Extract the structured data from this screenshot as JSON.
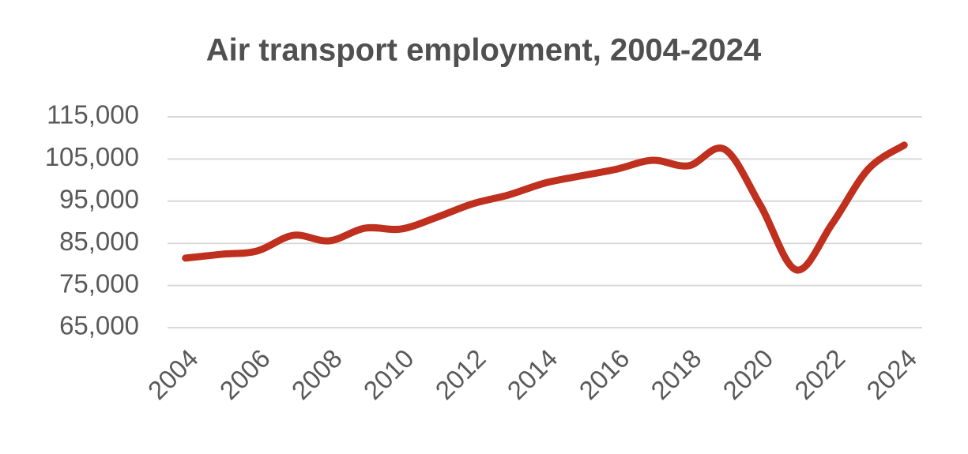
{
  "chart_data": {
    "type": "line",
    "title": "Air transport employment, 2004-2024",
    "x": [
      2004,
      2005,
      2006,
      2007,
      2008,
      2009,
      2010,
      2011,
      2012,
      2013,
      2014,
      2015,
      2016,
      2017,
      2018,
      2019,
      2020,
      2021,
      2022,
      2023,
      2024
    ],
    "series": [
      {
        "color": "#c0301f",
        "values": [
          81500,
          82400,
          83200,
          86900,
          85600,
          88600,
          88400,
          91200,
          94400,
          96500,
          99300,
          101000,
          102600,
          104700,
          103400,
          107300,
          94000,
          78700,
          89700,
          102600,
          108300
        ]
      }
    ],
    "xlim": [
      2003.5,
      2024.5
    ],
    "xticks": [
      2004,
      2006,
      2008,
      2010,
      2012,
      2014,
      2016,
      2018,
      2020,
      2022,
      2024
    ],
    "ylim": [
      65000,
      115000
    ],
    "yticks": [
      {
        "value": 65000,
        "label": "65,000"
      },
      {
        "value": 75000,
        "label": "75,000"
      },
      {
        "value": 85000,
        "label": "85,000"
      },
      {
        "value": 95000,
        "label": "95,000"
      },
      {
        "value": 105000,
        "label": "105,000"
      },
      {
        "value": 115000,
        "label": "115,000"
      }
    ],
    "grid": true
  }
}
